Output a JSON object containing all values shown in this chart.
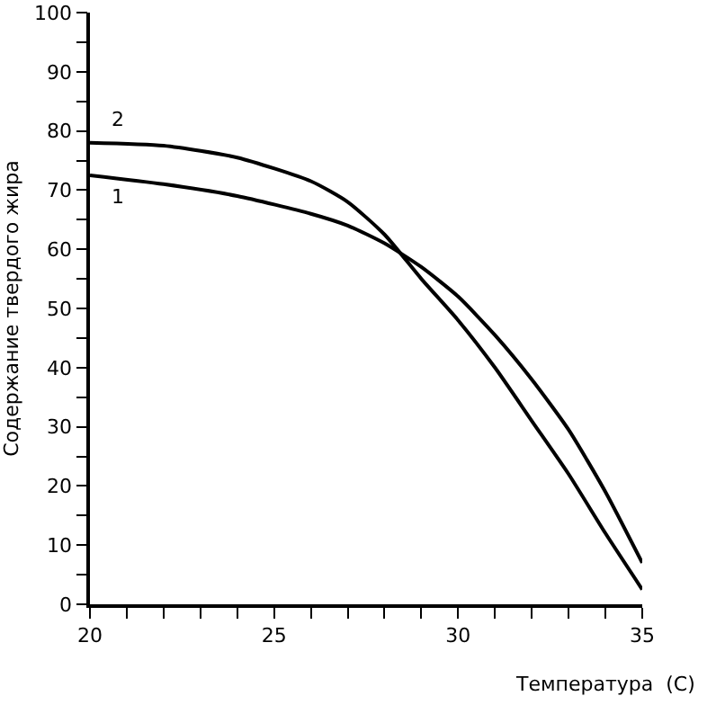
{
  "chart_data": {
    "type": "line",
    "xlabel": "Температура  (С)",
    "ylabel": "Содержание твердого жира",
    "x": [
      20,
      22,
      24,
      26,
      27,
      28,
      29,
      30,
      31,
      32,
      33,
      34,
      35
    ],
    "series": [
      {
        "name": "1",
        "color": "#000000",
        "values": [
          72.5,
          71,
          69,
          66,
          64,
          61,
          57,
          52,
          45.5,
          38,
          29.5,
          19,
          7
        ]
      },
      {
        "name": "2",
        "color": "#000000",
        "values": [
          78,
          77.5,
          75.5,
          71.5,
          68,
          62.5,
          55,
          48,
          40,
          31,
          22,
          12,
          2.5
        ]
      }
    ],
    "xlim": [
      20,
      35
    ],
    "ylim": [
      0,
      100
    ],
    "xticks": [
      20,
      {
        "value": 21,
        "label": null
      },
      {
        "value": 22,
        "label": null
      },
      {
        "value": 23,
        "label": null
      },
      {
        "value": 24,
        "label": null
      },
      25,
      {
        "value": 26,
        "label": null
      },
      {
        "value": 27,
        "label": null
      },
      {
        "value": 28,
        "label": null
      },
      {
        "value": 29,
        "label": null
      },
      30,
      {
        "value": 31,
        "label": null
      },
      {
        "value": 32,
        "label": null
      },
      {
        "value": 33,
        "label": null
      },
      {
        "value": 34,
        "label": null
      },
      35
    ],
    "yticks": [
      0,
      {
        "value": 5,
        "label": null
      },
      10,
      {
        "value": 15,
        "label": null
      },
      20,
      {
        "value": 25,
        "label": null
      },
      30,
      {
        "value": 35,
        "label": null
      },
      40,
      {
        "value": 45,
        "label": null
      },
      50,
      {
        "value": 55,
        "label": null
      },
      60,
      {
        "value": 65,
        "label": null
      },
      70,
      {
        "value": 75,
        "label": null
      },
      80,
      {
        "value": 85,
        "label": null
      },
      90,
      {
        "value": 95,
        "label": null
      },
      100
    ],
    "grid": false,
    "legend": false,
    "marker": "none",
    "line_style": "solid"
  }
}
